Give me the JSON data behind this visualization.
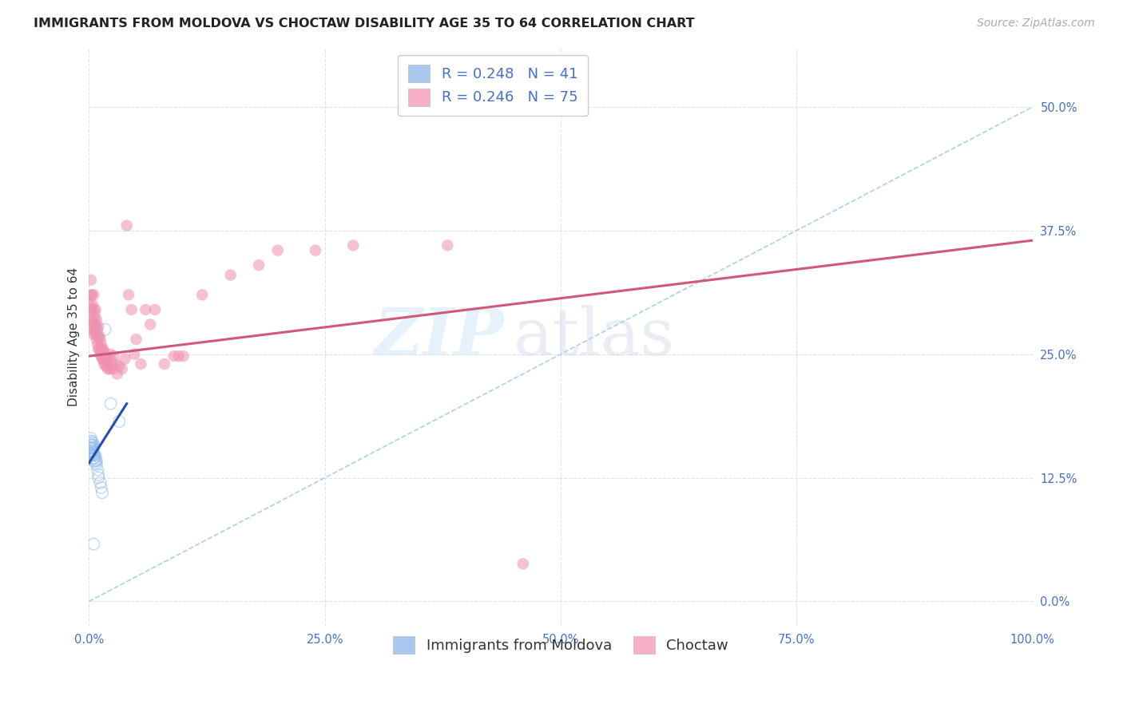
{
  "title": "IMMIGRANTS FROM MOLDOVA VS CHOCTAW DISABILITY AGE 35 TO 64 CORRELATION CHART",
  "source": "Source: ZipAtlas.com",
  "ylabel": "Disability Age 35 to 64",
  "xlim": [
    0.0,
    1.0
  ],
  "ylim": [
    -0.025,
    0.56
  ],
  "legend_entries": [
    {
      "label": "R = 0.248   N = 41",
      "color": "#a8c8f0"
    },
    {
      "label": "R = 0.246   N = 75",
      "color": "#f8b0c0"
    }
  ],
  "legend_labels": [
    "Immigrants from Moldova",
    "Choctaw"
  ],
  "blue_scatter_x": [
    0.001,
    0.001,
    0.001,
    0.002,
    0.002,
    0.002,
    0.002,
    0.002,
    0.002,
    0.003,
    0.003,
    0.003,
    0.003,
    0.003,
    0.004,
    0.004,
    0.004,
    0.004,
    0.005,
    0.005,
    0.005,
    0.005,
    0.005,
    0.006,
    0.006,
    0.006,
    0.007,
    0.007,
    0.007,
    0.008,
    0.008,
    0.009,
    0.01,
    0.01,
    0.012,
    0.013,
    0.014,
    0.017,
    0.023,
    0.032,
    0.005
  ],
  "blue_scatter_y": [
    0.15,
    0.155,
    0.16,
    0.148,
    0.152,
    0.155,
    0.158,
    0.162,
    0.165,
    0.15,
    0.152,
    0.155,
    0.158,
    0.162,
    0.148,
    0.152,
    0.156,
    0.16,
    0.145,
    0.148,
    0.15,
    0.155,
    0.158,
    0.142,
    0.145,
    0.148,
    0.14,
    0.143,
    0.147,
    0.138,
    0.142,
    0.133,
    0.128,
    0.125,
    0.12,
    0.115,
    0.11,
    0.275,
    0.2,
    0.182,
    0.058
  ],
  "pink_scatter_x": [
    0.001,
    0.002,
    0.002,
    0.002,
    0.003,
    0.003,
    0.003,
    0.004,
    0.004,
    0.005,
    0.005,
    0.005,
    0.005,
    0.006,
    0.006,
    0.007,
    0.007,
    0.007,
    0.008,
    0.008,
    0.008,
    0.009,
    0.009,
    0.01,
    0.01,
    0.01,
    0.011,
    0.011,
    0.012,
    0.012,
    0.013,
    0.013,
    0.014,
    0.014,
    0.015,
    0.015,
    0.016,
    0.016,
    0.017,
    0.018,
    0.018,
    0.019,
    0.02,
    0.021,
    0.022,
    0.023,
    0.024,
    0.025,
    0.026,
    0.028,
    0.03,
    0.032,
    0.035,
    0.038,
    0.04,
    0.042,
    0.045,
    0.048,
    0.05,
    0.055,
    0.06,
    0.065,
    0.07,
    0.08,
    0.09,
    0.095,
    0.1,
    0.12,
    0.15,
    0.18,
    0.2,
    0.24,
    0.28,
    0.38,
    0.46
  ],
  "pink_scatter_y": [
    0.3,
    0.285,
    0.31,
    0.325,
    0.28,
    0.295,
    0.31,
    0.275,
    0.3,
    0.27,
    0.285,
    0.295,
    0.31,
    0.275,
    0.29,
    0.27,
    0.28,
    0.295,
    0.265,
    0.275,
    0.285,
    0.26,
    0.275,
    0.255,
    0.268,
    0.278,
    0.255,
    0.268,
    0.25,
    0.265,
    0.248,
    0.26,
    0.245,
    0.255,
    0.245,
    0.255,
    0.24,
    0.252,
    0.245,
    0.238,
    0.248,
    0.24,
    0.235,
    0.245,
    0.235,
    0.25,
    0.24,
    0.235,
    0.248,
    0.24,
    0.23,
    0.238,
    0.235,
    0.245,
    0.38,
    0.31,
    0.295,
    0.25,
    0.265,
    0.24,
    0.295,
    0.28,
    0.295,
    0.24,
    0.248,
    0.248,
    0.248,
    0.31,
    0.33,
    0.34,
    0.355,
    0.355,
    0.36,
    0.36,
    0.038
  ],
  "blue_line_x": [
    0.0,
    0.04
  ],
  "blue_line_y": [
    0.14,
    0.2
  ],
  "pink_line_x": [
    0.0,
    1.0
  ],
  "pink_line_y": [
    0.248,
    0.365
  ],
  "dashed_line_x": [
    0.0,
    1.0
  ],
  "dashed_line_y": [
    0.0,
    0.5
  ],
  "scatter_size": 110,
  "scatter_alpha": 0.55,
  "blue_color": "#90bce8",
  "pink_color": "#f090b0",
  "blue_line_color": "#2050b0",
  "pink_line_color": "#d05878",
  "dashed_line_color": "#a8d0f0",
  "grid_color": "#e0e0ec",
  "background_color": "#ffffff",
  "title_fontsize": 11.5,
  "axis_label_fontsize": 11,
  "tick_fontsize": 10.5,
  "legend_fontsize": 13,
  "source_fontsize": 10
}
